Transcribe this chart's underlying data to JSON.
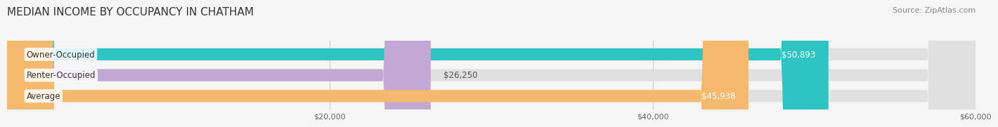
{
  "title": "MEDIAN INCOME BY OCCUPANCY IN CHATHAM",
  "source": "Source: ZipAtlas.com",
  "categories": [
    "Owner-Occupied",
    "Renter-Occupied",
    "Average"
  ],
  "values": [
    50893,
    26250,
    45938
  ],
  "bar_colors": [
    "#2ec4c4",
    "#c4a8d4",
    "#f5b96e"
  ],
  "xlim": [
    0,
    60000
  ],
  "xticks": [
    20000,
    40000,
    60000
  ],
  "xtick_labels": [
    "$20,000",
    "$40,000",
    "$60,000"
  ],
  "value_labels": [
    "$50,893",
    "$26,250",
    "$45,938"
  ],
  "background_color": "#f5f5f5",
  "bar_background_color": "#e0e0e0",
  "title_fontsize": 11,
  "source_fontsize": 8,
  "label_fontsize": 8.5,
  "value_fontsize": 8.5,
  "bar_height": 0.58
}
